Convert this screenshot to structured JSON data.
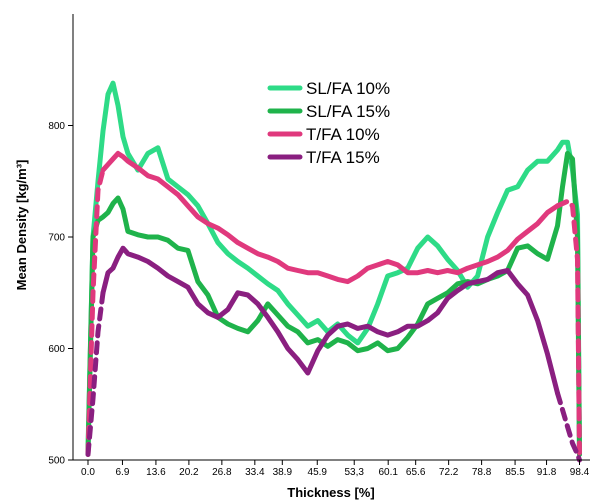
{
  "chart_data": {
    "type": "line",
    "xlabel": "Thickness [%]",
    "ylabel": "Mean Density [kg/m³]",
    "xlim": [
      -3,
      100.5
    ],
    "ylim": [
      500,
      900
    ],
    "x_ticks": [
      0.0,
      6.9,
      13.6,
      20.2,
      26.8,
      33.4,
      38.9,
      45.9,
      53.3,
      60.1,
      65.6,
      72.2,
      78.8,
      85.5,
      91.8,
      98.4
    ],
    "x_tick_labels": [
      "0.0",
      "6.9",
      "13.6",
      "20.2",
      "26.8",
      "33.4",
      "38.9",
      "45.9",
      "53,3",
      "60.1",
      "65.6",
      "72.2",
      "78.8",
      "85.5",
      "91.8",
      "98.4"
    ],
    "y_ticks": [
      500,
      600,
      700,
      800
    ],
    "y_tick_labels": [
      "500",
      "600",
      "700",
      "800"
    ],
    "legend_position": "top-center",
    "series": [
      {
        "name": "SL/FA 10%",
        "color": "#2edb87",
        "dashed_ends": false,
        "x": [
          0,
          1,
          2,
          3,
          4,
          5,
          6,
          7,
          8,
          10,
          12,
          14,
          16,
          18,
          20,
          22,
          24,
          26,
          28,
          30,
          32,
          34,
          36,
          38,
          40,
          42,
          44,
          46,
          48,
          50,
          52,
          54,
          56,
          58,
          60,
          62,
          64,
          66,
          68,
          70,
          72,
          74,
          76,
          78,
          80,
          82,
          84,
          86,
          88,
          90,
          92,
          94,
          95,
          96,
          97,
          98,
          98.4
        ],
        "y": [
          510,
          700,
          750,
          795,
          828,
          838,
          818,
          790,
          775,
          760,
          775,
          780,
          752,
          745,
          738,
          728,
          712,
          695,
          685,
          678,
          672,
          665,
          658,
          652,
          640,
          630,
          620,
          625,
          615,
          622,
          612,
          605,
          618,
          640,
          665,
          668,
          672,
          690,
          700,
          692,
          680,
          670,
          655,
          665,
          700,
          722,
          742,
          745,
          760,
          768,
          768,
          778,
          785,
          785,
          760,
          720,
          505
        ]
      },
      {
        "name": "SL/FA 15%",
        "color": "#1fb34b",
        "dashed_ends": false,
        "x": [
          0,
          1,
          2,
          3,
          4,
          5,
          6,
          7,
          8,
          10,
          12,
          14,
          16,
          18,
          20,
          22,
          24,
          26,
          28,
          30,
          32,
          34,
          36,
          38,
          40,
          42,
          44,
          46,
          48,
          50,
          52,
          54,
          56,
          58,
          60,
          62,
          64,
          66,
          68,
          70,
          72,
          74,
          76,
          78,
          80,
          82,
          84,
          86,
          88,
          90,
          92,
          94,
          95,
          96,
          97,
          98,
          98.4
        ],
        "y": [
          505,
          700,
          715,
          718,
          722,
          730,
          735,
          725,
          705,
          702,
          700,
          700,
          697,
          690,
          688,
          660,
          648,
          628,
          622,
          618,
          615,
          625,
          640,
          630,
          620,
          615,
          605,
          608,
          602,
          608,
          605,
          598,
          600,
          605,
          598,
          600,
          610,
          622,
          640,
          645,
          650,
          658,
          660,
          658,
          662,
          665,
          670,
          690,
          692,
          685,
          680,
          710,
          745,
          775,
          770,
          700,
          505
        ]
      },
      {
        "name": "T/FA 10%",
        "color": "#e0397d",
        "dashed_ends": true,
        "x": [
          0,
          1,
          2,
          3,
          4,
          5,
          6,
          7,
          8,
          10,
          12,
          14,
          16,
          18,
          20,
          22,
          24,
          26,
          28,
          30,
          32,
          34,
          36,
          38,
          40,
          42,
          44,
          46,
          48,
          50,
          52,
          54,
          56,
          58,
          60,
          62,
          64,
          66,
          68,
          70,
          72,
          74,
          76,
          78,
          80,
          82,
          84,
          86,
          88,
          90,
          92,
          94,
          95,
          96,
          97,
          98,
          98.4
        ],
        "y": [
          505,
          650,
          742,
          760,
          765,
          770,
          775,
          772,
          768,
          762,
          755,
          752,
          745,
          738,
          728,
          718,
          712,
          708,
          702,
          695,
          690,
          685,
          682,
          678,
          672,
          670,
          668,
          668,
          665,
          662,
          660,
          665,
          672,
          675,
          678,
          675,
          668,
          668,
          670,
          668,
          670,
          668,
          672,
          675,
          678,
          682,
          688,
          698,
          705,
          712,
          722,
          728,
          730,
          732,
          728,
          680,
          505
        ]
      },
      {
        "name": "T/FA 15%",
        "color": "#8a1f80",
        "dashed_ends": true,
        "x": [
          0,
          1,
          2,
          3,
          4,
          5,
          6,
          7,
          8,
          10,
          12,
          14,
          16,
          18,
          20,
          22,
          24,
          26,
          28,
          30,
          32,
          34,
          36,
          38,
          40,
          42,
          44,
          46,
          48,
          50,
          52,
          54,
          56,
          58,
          60,
          62,
          64,
          66,
          68,
          70,
          72,
          74,
          76,
          78,
          80,
          82,
          84,
          86,
          88,
          90,
          92,
          94,
          95,
          96,
          97,
          98,
          98.4
        ],
        "y": [
          505,
          555,
          615,
          650,
          668,
          672,
          682,
          690,
          685,
          682,
          678,
          672,
          665,
          660,
          655,
          640,
          632,
          628,
          635,
          650,
          648,
          640,
          628,
          615,
          600,
          590,
          578,
          598,
          612,
          620,
          622,
          618,
          620,
          615,
          612,
          615,
          620,
          620,
          625,
          632,
          645,
          652,
          658,
          660,
          662,
          668,
          670,
          658,
          648,
          625,
          595,
          560,
          545,
          530,
          515,
          505,
          500
        ]
      }
    ]
  }
}
